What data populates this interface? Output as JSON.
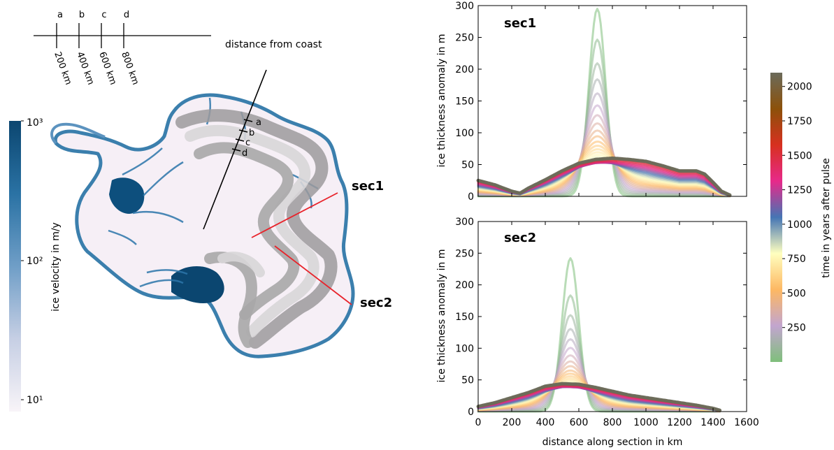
{
  "map": {
    "scale": {
      "letters": [
        "a",
        "b",
        "c",
        "d"
      ],
      "distance_labels": [
        "200 km",
        "400 km",
        "600 km",
        "800 km"
      ],
      "caption": "distance from coast"
    },
    "transect_letters": [
      "a",
      "b",
      "c",
      "d"
    ],
    "section_labels": [
      "sec1",
      "sec2"
    ],
    "colors": {
      "transect": "#000000",
      "sections": "#e8232b"
    }
  },
  "velocity_colorbar": {
    "label": "ice velocity in m/y",
    "tick_labels": [
      "10³",
      "10²",
      "10¹"
    ],
    "scale": "log",
    "range": [
      10,
      1000
    ],
    "colors": [
      "#f8f4f8",
      "#c6cfe4",
      "#6f9ec7",
      "#2a72a4",
      "#0b4670"
    ]
  },
  "time_colorbar": {
    "label": "time in years after pulse",
    "ticks": [
      250,
      500,
      750,
      1000,
      1250,
      1500,
      1750,
      2000
    ],
    "tick_labels": [
      "250",
      "500",
      "750",
      "1000",
      "1250",
      "1500",
      "1750",
      "2000"
    ],
    "range": [
      0,
      2100
    ],
    "colors": [
      "#7fbf7b",
      "#c2a5cf",
      "#fdb863",
      "#ffffbf",
      "#4575b4",
      "#e7298a",
      "#d7301f",
      "#8c510a",
      "#6b6b5b"
    ]
  },
  "chart_data": [
    {
      "type": "line",
      "title": "sec1",
      "xlabel": "",
      "ylabel": "ice thickness anomaly in m",
      "xlim": [
        0,
        1600
      ],
      "ylim": [
        0,
        300
      ],
      "xticks": [
        0,
        200,
        400,
        600,
        800,
        1000,
        1200,
        1400,
        1600
      ],
      "yticks": [
        0,
        50,
        100,
        150,
        200,
        250,
        300
      ],
      "ytick_labels": [
        "0",
        "50",
        "100",
        "150",
        "200",
        "250",
        "300"
      ],
      "series_time_years": [
        0,
        2100
      ],
      "peak_amplitudes": [
        295,
        253,
        220,
        198,
        178,
        160,
        145,
        132,
        120,
        110,
        100,
        92
      ],
      "peak_x": 710,
      "final_profile": {
        "x": [
          0,
          100,
          200,
          250,
          300,
          400,
          500,
          600,
          700,
          800,
          900,
          1000,
          1100,
          1200,
          1250,
          1300,
          1350,
          1400,
          1450,
          1500
        ],
        "y": [
          25,
          18,
          8,
          5,
          13,
          26,
          40,
          52,
          58,
          60,
          58,
          55,
          48,
          40,
          40,
          40,
          35,
          22,
          8,
          2
        ]
      }
    },
    {
      "type": "line",
      "title": "sec2",
      "xlabel": "distance along section in km",
      "ylabel": "ice thickness anomaly in m",
      "xlim": [
        0,
        1600
      ],
      "ylim": [
        0,
        300
      ],
      "xticks": [
        0,
        200,
        400,
        600,
        800,
        1000,
        1200,
        1400,
        1600
      ],
      "xtick_labels": [
        "0",
        "200",
        "400",
        "600",
        "800",
        "1000",
        "1200",
        "1400",
        "1600"
      ],
      "yticks": [
        0,
        50,
        100,
        150,
        200,
        250,
        300
      ],
      "ytick_labels": [
        "0",
        "50",
        "100",
        "150",
        "200",
        "250",
        "300"
      ],
      "series_time_years": [
        0,
        2100
      ],
      "peak_amplitudes": [
        242,
        188,
        160,
        140,
        125,
        112,
        100,
        90,
        82,
        74
      ],
      "peak_x": 550,
      "final_profile": {
        "x": [
          0,
          100,
          200,
          300,
          400,
          500,
          600,
          700,
          800,
          900,
          1000,
          1100,
          1200,
          1300,
          1400,
          1440
        ],
        "y": [
          8,
          14,
          22,
          30,
          40,
          44,
          43,
          38,
          32,
          26,
          22,
          18,
          14,
          10,
          5,
          2
        ]
      }
    }
  ]
}
